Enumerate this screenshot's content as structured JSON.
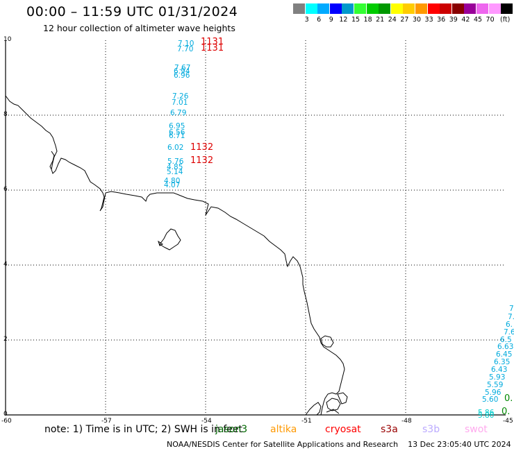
{
  "header": {
    "title": "00:00 – 11:59 UTC 01/31/2024",
    "subtitle": "12 hour collection of altimeter wave heights"
  },
  "scale": {
    "units": "(ft)",
    "colors": [
      "#808080",
      "#00ffff",
      "#00aaff",
      "#0000ff",
      "#0099cc",
      "#33ff33",
      "#00cc00",
      "#009900",
      "#ffff00",
      "#ffcc00",
      "#ff9900",
      "#ff0000",
      "#cc0000",
      "#880000",
      "#990099",
      "#ee66ee",
      "#ff99ff",
      "#000000"
    ],
    "labels": [
      "3",
      "6",
      "9",
      "12",
      "15",
      "18",
      "21",
      "24",
      "27",
      "30",
      "33",
      "36",
      "39",
      "42",
      "45",
      "70"
    ]
  },
  "map": {
    "lat_labels": [
      "10",
      "8",
      "6",
      "4",
      "2",
      "0"
    ],
    "lon_labels": [
      "-60",
      "-57",
      "-54",
      "-51",
      "-48",
      "-45"
    ],
    "colors": {
      "grid": "#000000",
      "coast": "#000000",
      "cyan": "#00aadd",
      "teal": "#00cccc",
      "red": "#dd0000",
      "green": "#008800",
      "pink": "#ff88dd"
    }
  },
  "observations": {
    "west_track": [
      "7.10",
      "7.70",
      "7.67",
      "6.94",
      "6.96",
      "7.26",
      "7.01",
      "6.79",
      "6.95",
      "6.56",
      "6.71",
      "6.02",
      "5.76",
      "4.85",
      "5.14",
      "4.80",
      "4.07"
    ],
    "red_labels": [
      "1131",
      "1131",
      "1132",
      "1132"
    ],
    "east_track": [
      "7.",
      "7.",
      "6.",
      "7.6",
      "6.5",
      "6.63",
      "6.45",
      "6.35",
      "6.43",
      "5.93",
      "5.59",
      "5.96",
      "5.60",
      "5.86",
      "5.80"
    ],
    "east_green": [
      "0.",
      "0."
    ]
  },
  "footer": {
    "note": "note: 1) Time is in UTC; 2) SWH is in feet",
    "satellites": [
      "jason3",
      "altika",
      "cryosat",
      "s3a",
      "s3b",
      "swot"
    ],
    "credit": "NOAA/NESDIS Center for Satellite Applications and Research",
    "generated": "13 Dec 23:05:40 UTC 2024"
  }
}
